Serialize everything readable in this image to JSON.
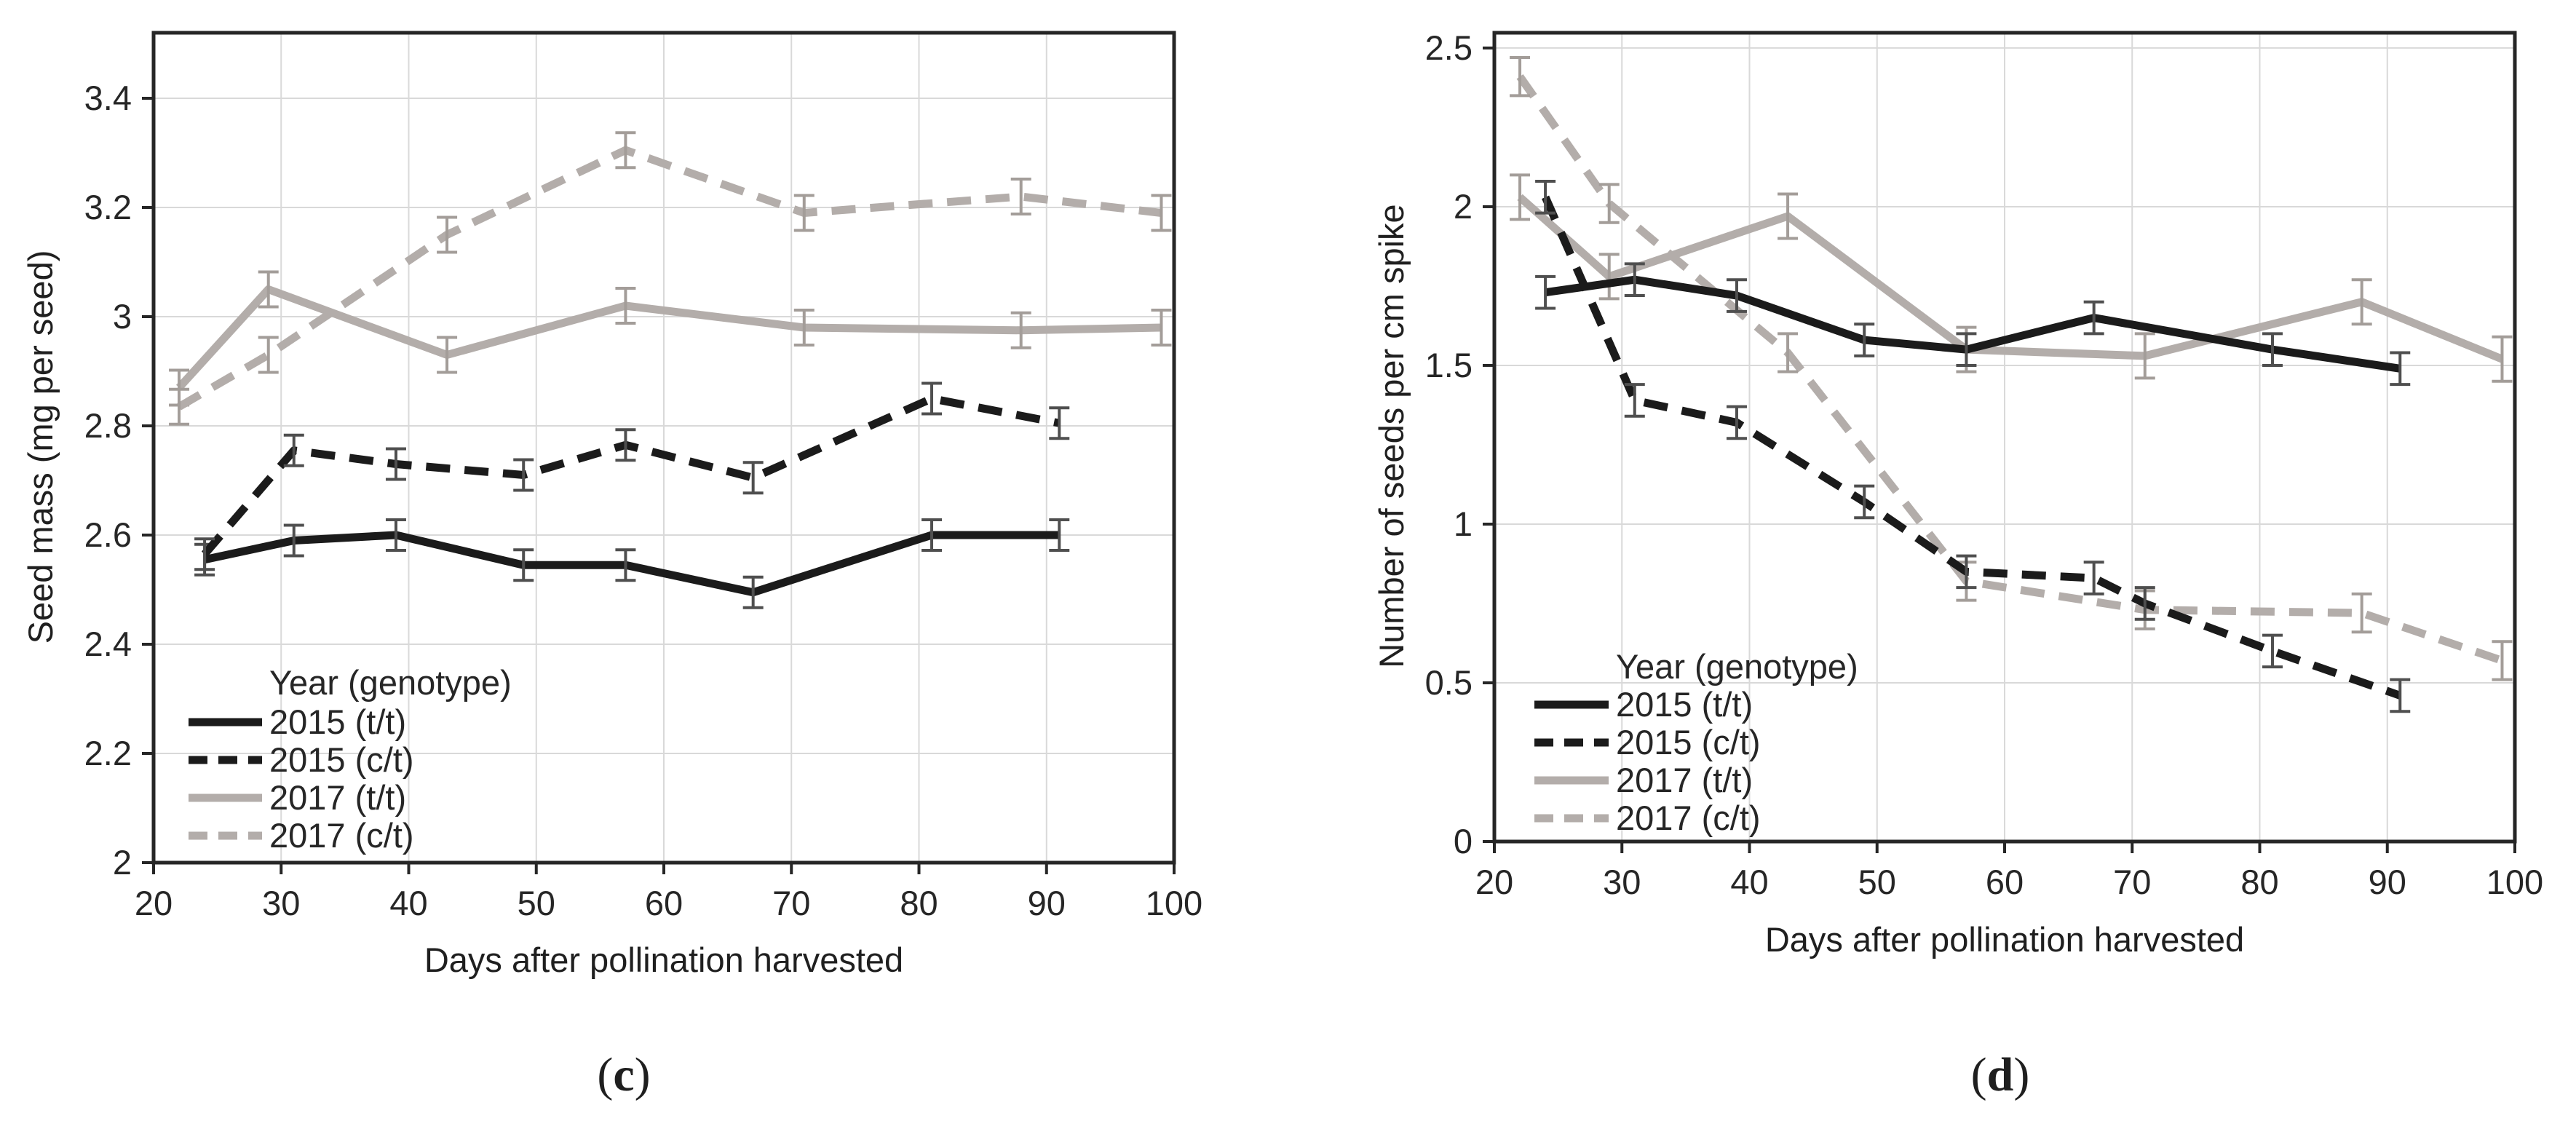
{
  "colors": {
    "black_series": "#1b1b1b",
    "gray_series": "#b3adaa",
    "err_black": "#4f4f4f",
    "err_gray": "#a39d99",
    "grid": "#d9d9d9",
    "axis": "#262626",
    "text": "#262626"
  },
  "chart_data": [
    {
      "id": "c",
      "type": "line",
      "caption": {
        "open": "(",
        "letter": "c",
        "close": ")"
      },
      "xlabel": "Days after pollination harvested",
      "ylabel": "Seed mass (mg per seed)",
      "xlim": [
        20,
        100
      ],
      "ylim": [
        2.0,
        3.52
      ],
      "grid": true,
      "legend_position": "lower-left",
      "legend_title": "Year (genotype)",
      "xticks": [
        20,
        30,
        40,
        50,
        60,
        70,
        80,
        90,
        100
      ],
      "yticks": [
        2,
        2.2,
        2.4,
        2.6,
        2.8,
        3,
        3.2,
        3.4
      ],
      "ytick_labels": [
        "2",
        "2.2",
        "2.4",
        "2.6",
        "2.8",
        "3",
        "3.2",
        "3.4"
      ],
      "series": [
        {
          "name": "2015 (t/t)",
          "color": "black",
          "dash": "solid",
          "x": [
            24,
            31,
            39,
            49,
            57,
            67,
            81,
            91
          ],
          "y": [
            2.555,
            2.59,
            2.6,
            2.545,
            2.545,
            2.495,
            2.6,
            2.6
          ],
          "err": 0.028
        },
        {
          "name": "2015 (c/t)",
          "color": "black",
          "dash": "dashed",
          "x": [
            24,
            31,
            39,
            49,
            57,
            67,
            81,
            91
          ],
          "y": [
            2.565,
            2.755,
            2.73,
            2.71,
            2.765,
            2.705,
            2.85,
            2.805
          ],
          "err": 0.028
        },
        {
          "name": "2017 (t/t)",
          "color": "gray",
          "dash": "solid",
          "x": [
            22,
            29,
            43,
            57,
            71,
            88,
            99
          ],
          "y": [
            2.87,
            3.05,
            2.93,
            3.02,
            2.98,
            2.975,
            2.98
          ],
          "err": 0.032
        },
        {
          "name": "2017 (c/t)",
          "color": "gray",
          "dash": "dashed",
          "x": [
            22,
            29,
            43,
            57,
            71,
            88,
            99
          ],
          "y": [
            2.835,
            2.93,
            3.15,
            3.305,
            3.19,
            3.22,
            3.19
          ],
          "err": 0.032
        }
      ]
    },
    {
      "id": "d",
      "type": "line",
      "caption": {
        "open": "(",
        "letter": "d",
        "close": ")"
      },
      "xlabel": "Days after pollination harvested",
      "ylabel": "Number of seeds per cm spike",
      "xlim": [
        20,
        100
      ],
      "ylim": [
        0,
        2.548
      ],
      "grid": true,
      "legend_position": "lower-left",
      "legend_title": "Year (genotype)",
      "xticks": [
        20,
        30,
        40,
        50,
        60,
        70,
        80,
        90,
        100
      ],
      "yticks": [
        0,
        0.5,
        1,
        1.5,
        2,
        2.5
      ],
      "ytick_labels": [
        "0",
        "0.5",
        "1",
        "1.5",
        "2",
        "2.5"
      ],
      "series": [
        {
          "name": "2015 (t/t)",
          "color": "black",
          "dash": "solid",
          "x": [
            24,
            31,
            39,
            49,
            57,
            67,
            81,
            91
          ],
          "y": [
            1.73,
            1.77,
            1.72,
            1.58,
            1.55,
            1.65,
            1.55,
            1.49
          ],
          "err": 0.05
        },
        {
          "name": "2015 (c/t)",
          "color": "black",
          "dash": "dashed",
          "x": [
            24,
            31,
            39,
            49,
            57,
            67,
            71,
            81,
            91
          ],
          "y": [
            2.03,
            1.39,
            1.32,
            1.07,
            0.85,
            0.83,
            0.75,
            0.6,
            0.46
          ],
          "err": 0.05
        },
        {
          "name": "2017 (t/t)",
          "color": "gray",
          "dash": "solid",
          "x": [
            22,
            29,
            43,
            57,
            71,
            88,
            99
          ],
          "y": [
            2.03,
            1.78,
            1.97,
            1.55,
            1.53,
            1.7,
            1.52
          ],
          "err": 0.07
        },
        {
          "name": "2017 (c/t)",
          "color": "gray",
          "dash": "dashed",
          "x": [
            22,
            29,
            43,
            57,
            71,
            88,
            99
          ],
          "y": [
            2.41,
            2.01,
            1.54,
            0.82,
            0.73,
            0.72,
            0.57
          ],
          "err": 0.06
        }
      ]
    }
  ]
}
